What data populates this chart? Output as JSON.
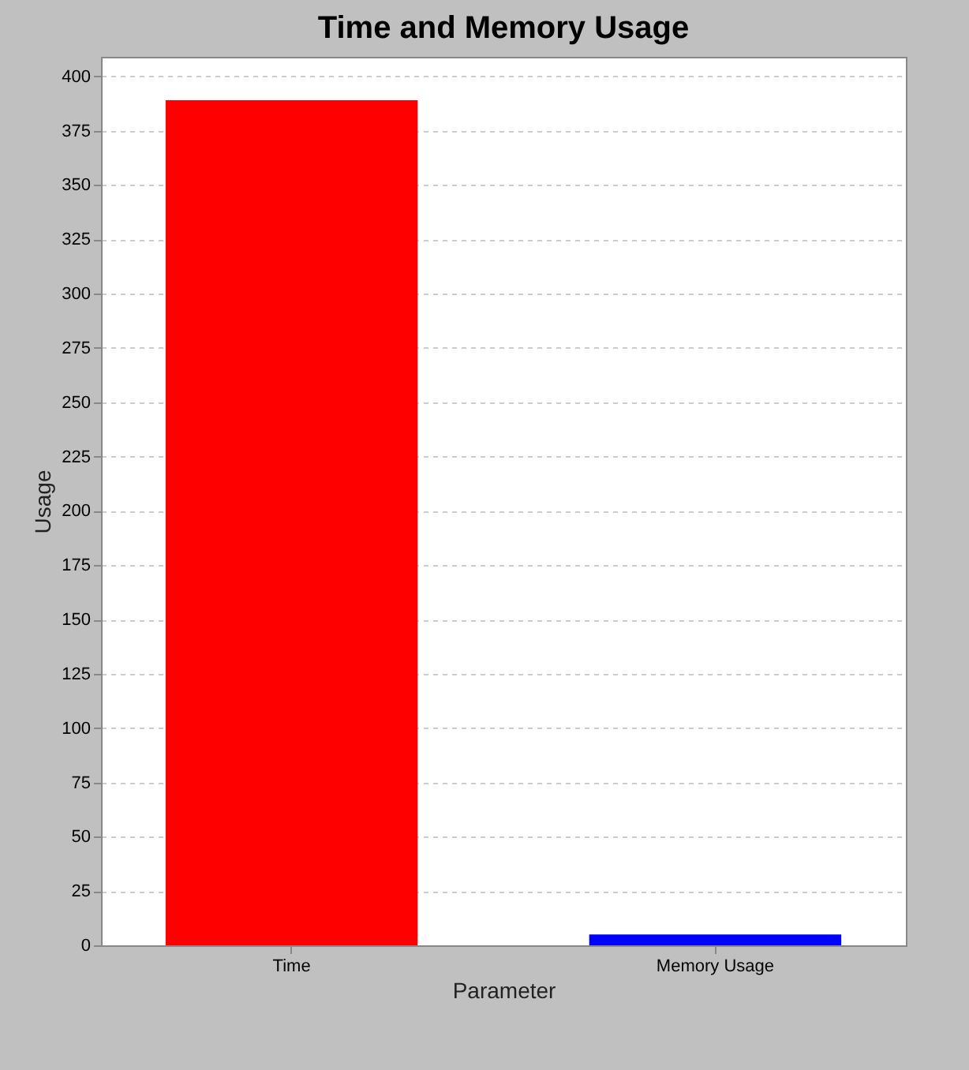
{
  "chart_data": {
    "type": "bar",
    "title": "Time and Memory Usage",
    "xlabel": "Parameter",
    "ylabel": "Usage",
    "categories": [
      "Time",
      "Memory Usage"
    ],
    "values": [
      389,
      5
    ],
    "colors": [
      "#ff0000",
      "#0000ff"
    ],
    "ylim": [
      0,
      409
    ],
    "yticks": [
      0,
      25,
      50,
      75,
      100,
      125,
      150,
      175,
      200,
      225,
      250,
      275,
      300,
      325,
      350,
      375,
      400
    ],
    "grid": "y"
  }
}
